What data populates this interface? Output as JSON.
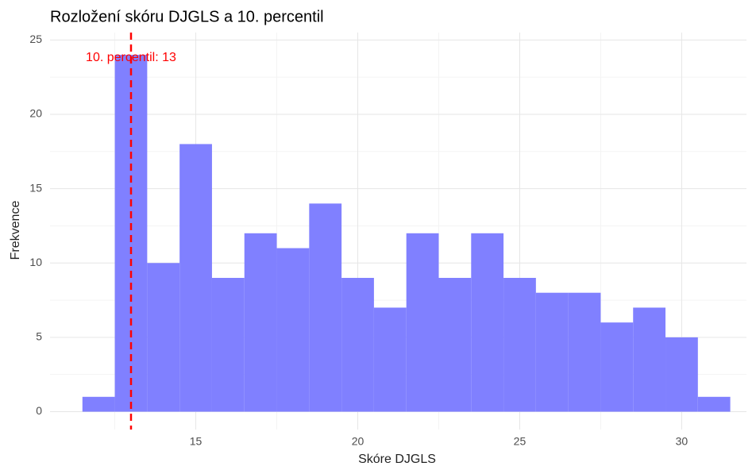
{
  "chart_data": {
    "type": "histogram",
    "title": "Rozložení skóru DJGLS a 10. percentil",
    "x_label": "Skóre DJGLS",
    "y_label": "Frekvence",
    "bins": [
      11.5,
      12.5,
      13.5,
      14.5,
      15.5,
      16.5,
      17.5,
      18.5,
      19.5,
      20.5,
      21.5,
      22.5,
      23.5,
      24.5,
      25.5,
      26.5,
      27.5,
      28.5,
      29.5,
      30.5,
      31.5
    ],
    "values": [
      1,
      24,
      10,
      18,
      9,
      12,
      11,
      14,
      9,
      7,
      12,
      9,
      12,
      9,
      8,
      8,
      6,
      7,
      5,
      1
    ],
    "color": "#8080ff",
    "xlim": [
      10.5,
      32
    ],
    "ylim": [
      -1.2,
      25.5
    ],
    "xticks": [
      15,
      20,
      25,
      30
    ],
    "yticks": [
      0,
      5,
      10,
      15,
      20,
      25
    ],
    "grid": true,
    "minor_grid": true,
    "vline": {
      "value": 13,
      "color": "#ff0000",
      "label": "10. percentil: 13"
    }
  }
}
